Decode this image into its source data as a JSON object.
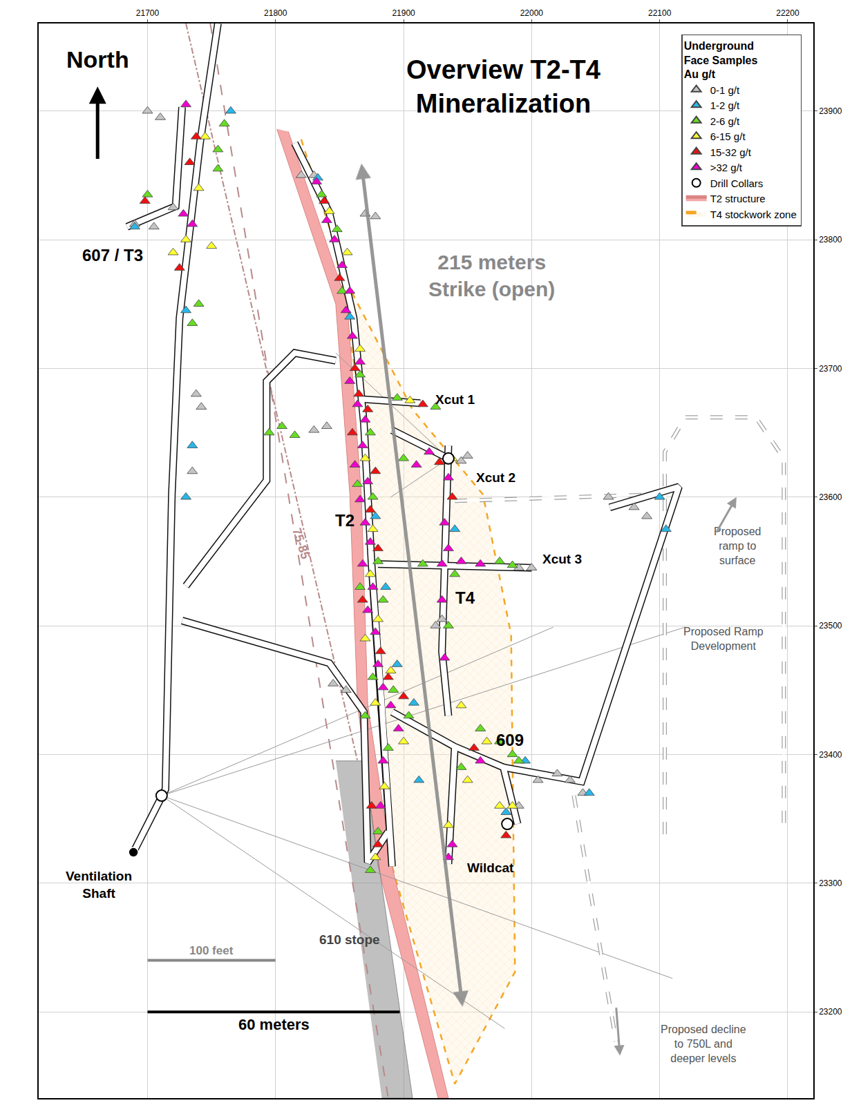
{
  "chart_data": {
    "type": "map",
    "title": [
      "Overview T2-T4",
      "Mineralization"
    ],
    "xlim": [
      21615,
      22220
    ],
    "ylim": [
      23133,
      23968
    ],
    "xticks": [
      21700,
      21800,
      21900,
      22000,
      22100,
      22200
    ],
    "yticks": [
      23200,
      23300,
      23400,
      23500,
      23600,
      23700,
      23800,
      23900
    ],
    "grid": true,
    "legend": "top right",
    "legend_title": [
      "Underground",
      "Face Samples",
      "Au g/t"
    ],
    "series": [
      {
        "name": "0-1 g/t",
        "color": "#c4c4c4",
        "marker": "triangle-up",
        "x": [
          21990,
          22000,
          21945,
          21950,
          21738,
          21742,
          21735,
          21820,
          21830,
          21870,
          21878,
          22005,
          22020,
          22030,
          22040,
          22080,
          22090,
          22060,
          21830,
          21840,
          21845,
          21855,
          21690,
          21705,
          21720,
          21700,
          21710,
          21990,
          21925,
          21930
        ],
        "y": [
          23545,
          23545,
          23628,
          23632,
          23680,
          23670,
          23620,
          23850,
          23850,
          23820,
          23818,
          23380,
          23385,
          23380,
          23370,
          23592,
          23585,
          23600,
          23652,
          23655,
          23455,
          23450,
          23812,
          23810,
          23825,
          23900,
          23895,
          23360,
          23500,
          23505
        ]
      },
      {
        "name": "1-2 g/t",
        "color": "#29b6e8",
        "marker": "triangle-up",
        "x": [
          21833,
          21858,
          21878,
          21886,
          21895,
          21908,
          21912,
          21995,
          22045,
          21690,
          21730,
          21765,
          21730,
          21735,
          22105,
          22100,
          21940,
          21980
        ],
        "y": [
          23848,
          23740,
          23585,
          23530,
          23470,
          23440,
          23380,
          23395,
          23370,
          23810,
          23745,
          23900,
          23600,
          23640,
          23575,
          23600,
          23575,
          23355
        ]
      },
      {
        "name": "2-6 g/t",
        "color": "#66dd22",
        "marker": "triangle-up",
        "x": [
          21836,
          21848,
          21852,
          21866,
          21874,
          21864,
          21876,
          21880,
          21866,
          21884,
          21876,
          21892,
          21870,
          21904,
          21888,
          21880,
          21874,
          21895,
          21925,
          21900,
          21915,
          21975,
          21985,
          21960,
          21975,
          21985,
          21945,
          21990,
          21940,
          21935,
          21805,
          21815,
          21795,
          21760,
          21755,
          21740,
          21735,
          21755,
          21700
        ],
        "y": [
          23835,
          23808,
          23760,
          23695,
          23650,
          23610,
          23600,
          23550,
          23530,
          23520,
          23460,
          23450,
          23430,
          23430,
          23405,
          23340,
          23310,
          23677,
          23670,
          23630,
          23548,
          23550,
          23547,
          23420,
          23410,
          23400,
          23390,
          23395,
          23540,
          23500,
          23655,
          23648,
          23650,
          23890,
          23870,
          23750,
          23735,
          23855,
          23835
        ]
      },
      {
        "name": "6-15 g/t",
        "color": "#ffff33",
        "marker": "triangle-up",
        "x": [
          21842,
          21856,
          21866,
          21870,
          21876,
          21874,
          21880,
          21870,
          21890,
          21878,
          21900,
          21885,
          21878,
          21905,
          21950,
          21965,
          21975,
          21935,
          21985,
          21938,
          21745,
          21740,
          21730,
          21720,
          21750,
          21945
        ],
        "y": [
          23822,
          23790,
          23715,
          23630,
          23575,
          23540,
          23505,
          23490,
          23465,
          23440,
          23410,
          23375,
          23320,
          23675,
          23380,
          23410,
          23360,
          23345,
          23360,
          23630,
          23880,
          23840,
          23800,
          23790,
          23795,
          23438
        ]
      },
      {
        "name": "15-32 g/t",
        "color": "#ee1111",
        "marker": "triangle-up",
        "x": [
          21838,
          21850,
          21862,
          21865,
          21872,
          21860,
          21878,
          21874,
          21880,
          21868,
          21882,
          21888,
          21900,
          21875,
          21880,
          21915,
          21928,
          21938,
          21980,
          21733,
          21738,
          21725,
          21698,
          21955
        ],
        "y": [
          23830,
          23770,
          23700,
          23680,
          23668,
          23650,
          23620,
          23590,
          23560,
          23520,
          23480,
          23460,
          23445,
          23360,
          23330,
          23672,
          23627,
          23600,
          23337,
          23860,
          23880,
          23778,
          23830,
          23405
        ]
      },
      {
        "name": ">32 g/t",
        "color": "#ee00cc",
        "marker": "triangle-up",
        "x": [
          21832,
          21840,
          21846,
          21852,
          21858,
          21855,
          21860,
          21866,
          21858,
          21864,
          21870,
          21868,
          21862,
          21872,
          21866,
          21870,
          21874,
          21868,
          21876,
          21872,
          21878,
          21880,
          21884,
          21890,
          21896,
          21884,
          21882,
          21910,
          21920,
          21930,
          21945,
          21960,
          21935,
          21932,
          21935,
          21930,
          21932,
          21935,
          21938,
          21960,
          21730,
          21728,
          21735
        ],
        "y": [
          23845,
          23815,
          23800,
          23780,
          23760,
          23745,
          23725,
          23705,
          23690,
          23672,
          23660,
          23640,
          23625,
          23612,
          23598,
          23580,
          23565,
          23548,
          23530,
          23512,
          23495,
          23470,
          23452,
          23438,
          23420,
          23395,
          23360,
          23625,
          23635,
          23548,
          23550,
          23548,
          23615,
          23580,
          23560,
          23520,
          23475,
          23320,
          23330,
          23395,
          23905,
          23820,
          23812
        ]
      },
      {
        "name": "Drill Collars",
        "color": "#ffffff",
        "marker": "circle",
        "x": [
          21711,
          21935,
          21981
        ],
        "y": [
          23368,
          23630,
          23346
        ]
      }
    ],
    "areas": [
      {
        "name": "T2 structure",
        "color": "#f4a9a8",
        "x": [
          21801,
          21847,
          21858,
          21864,
          21880,
          21927,
          21935,
          21891,
          21872,
          21867,
          21856,
          21810
        ],
        "y": [
          23886,
          23750,
          23602,
          23439,
          23313,
          23133,
          23133,
          23313,
          23439,
          23602,
          23750,
          23884
        ]
      },
      {
        "name": "T4 stockwork zone",
        "color": "#f5a623",
        "x": [
          21820,
          21856,
          21907,
          21962,
          21984,
          21987,
          21940,
          21891,
          21880,
          21869,
          21842
        ],
        "y": [
          23878,
          23766,
          23668,
          23602,
          23493,
          23231,
          23144,
          23313,
          23439,
          23657,
          23821
        ]
      }
    ],
    "features": {
      "drifts": [
        {
          "x": [
            21689,
            21714,
            21719,
            21725,
            21741,
            21755
          ],
          "y": [
            23324,
            23373,
            23602,
            23739,
            23875,
            23968
          ]
        },
        {
          "x": [
            21727,
            21842,
            21869,
            21872,
            21888
          ],
          "y": [
            23504,
            23471,
            23433,
            23316,
            23340
          ]
        },
        {
          "x": [
            21730,
            21793,
            21793,
            21815,
            21847
          ],
          "y": [
            23531,
            23613,
            23690,
            23712,
            23706
          ]
        },
        {
          "x": [
            21815,
            21842,
            21861,
            21869,
            21875,
            21883,
            21891
          ],
          "y": [
            23875,
            23821,
            23739,
            23657,
            23548,
            23439,
            23313
          ]
        },
        {
          "x": [
            21891,
            21940,
            21978,
            21989
          ],
          "y": [
            23433,
            23406,
            23390,
            23346
          ]
        },
        {
          "x": [
            21978,
            22039,
            22115,
            22061
          ],
          "y": [
            23390,
            23379,
            23608,
            23592
          ]
        },
        {
          "x": [
            21869,
            21913
          ],
          "y": [
            23676,
            23673
          ]
        },
        {
          "x": [
            21891,
            21935
          ],
          "y": [
            23652,
            23630
          ]
        },
        {
          "x": [
            21880,
            22000
          ],
          "y": [
            23548,
            23545
          ]
        },
        {
          "x": [
            21684,
            21722,
            21727
          ],
          "y": [
            23810,
            23826,
            23903
          ]
        },
        {
          "x": [
            21935,
            21932,
            21930,
            21935
          ],
          "y": [
            23640,
            23560,
            23480,
            23430
          ]
        },
        {
          "x": [
            21940,
            21935
          ],
          "y": [
            23406,
            23315
          ]
        }
      ],
      "stope": {
        "x": [
          21847,
          21869,
          21907,
          21883
        ],
        "y": [
          23395,
          23395,
          23133,
          23133
        ]
      },
      "faults": [
        {
          "x": [
            21730,
            21864
          ],
          "y": [
            23968,
            23395
          ]
        },
        {
          "x": [
            21749,
            21888
          ],
          "y": [
            23968,
            23133
          ]
        }
      ],
      "drill_traces": [
        {
          "x": [
            21711,
            22120
          ],
          "y": [
            23368,
            23499
          ]
        },
        {
          "x": [
            21711,
            22017
          ],
          "y": [
            23368,
            23499
          ]
        },
        {
          "x": [
            21711,
            22110
          ],
          "y": [
            23368,
            23226
          ]
        },
        {
          "x": [
            21711,
            21979
          ],
          "y": [
            23368,
            23187
          ]
        },
        {
          "x": [
            21935,
            21847
          ],
          "y": [
            23630,
            23712
          ]
        },
        {
          "x": [
            21935,
            21890
          ],
          "y": [
            23630,
            23600
          ]
        }
      ],
      "proposed": [
        {
          "x": [
            22104,
            22104,
            22120,
            22175,
            22197,
            22197
          ],
          "y": [
            23338,
            23635,
            23662,
            23662,
            23630,
            23338
          ]
        },
        {
          "x": [
            22033,
            22066
          ],
          "y": [
            23368,
            23177
          ]
        },
        {
          "x": [
            21940,
            22099
          ],
          "y": [
            23597,
            23602
          ]
        }
      ],
      "ventilation_shaft": {
        "x": [
          21689
        ],
        "y": [
          23324
        ]
      }
    },
    "labels": [
      {
        "text": "607 / T3",
        "x": 21673,
        "y": 23788
      },
      {
        "text": "T2",
        "x": 21854,
        "y": 23582
      },
      {
        "text": "T4",
        "x": 21948,
        "y": 23522
      },
      {
        "text": "Xcut 1",
        "x": 21940,
        "y": 23676
      },
      {
        "text": "Xcut 2",
        "x": 21972,
        "y": 23615
      },
      {
        "text": "Xcut 3",
        "x": 22024,
        "y": 23552
      },
      {
        "text": "609",
        "x": 21983,
        "y": 23411
      },
      {
        "text": "Wildcat",
        "x": 21968,
        "y": 23312
      },
      {
        "text": [
          "Ventilation",
          "Shaft"
        ],
        "x": 21662,
        "y": 23299
      },
      {
        "text": "610 stope",
        "x": 21858,
        "y": 23256
      },
      {
        "text": [
          "215 meters",
          "Strike (open)"
        ],
        "x": 21969,
        "y": 23772
      },
      {
        "text": [
          "Proposed",
          "ramp to",
          "surface"
        ],
        "x": 22161,
        "y": 23562
      },
      {
        "text": [
          "Proposed Ramp",
          "Development"
        ],
        "x": 22150,
        "y": 23490
      },
      {
        "text": [
          "Proposed decline",
          "to 750L and",
          "deeper levels"
        ],
        "x": 22134,
        "y": 23175
      },
      {
        "text": "75-85",
        "x": 21820,
        "y": 23564
      }
    ],
    "north": {
      "text": "North",
      "x": 21661,
      "y": 23940,
      "arrow_x": [
        21661,
        21661
      ],
      "arrow_y": [
        23862,
        23919
      ]
    },
    "strike_arrow": {
      "x": [
        21867,
        21946
      ],
      "y": [
        23860,
        23204
      ]
    },
    "arrows": [
      {
        "x": [
          22144,
          22160
        ],
        "y": [
          23572,
          23600
        ]
      },
      {
        "x": [
          22066,
          22069
        ],
        "y": [
          23204,
          23166
        ]
      }
    ],
    "scale_bars": [
      {
        "label": "100 feet",
        "x": [
          21700,
          21800
        ],
        "y": 23240
      },
      {
        "label": "60 meters",
        "x": [
          21700,
          21897
        ],
        "y": 23200
      }
    ]
  }
}
